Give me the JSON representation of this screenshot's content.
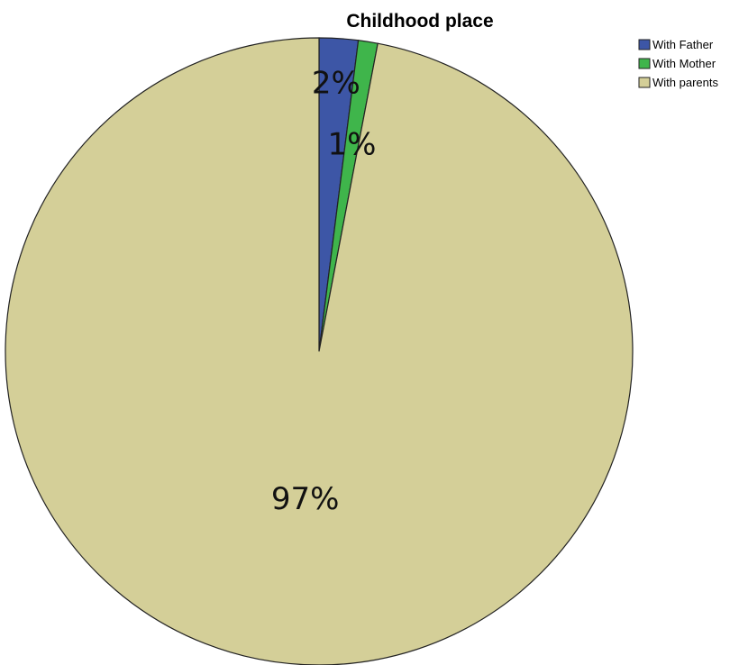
{
  "chart_data": {
    "type": "pie",
    "title": "Childhood place",
    "categories": [
      "With Father",
      "With Mother",
      "With parents"
    ],
    "values": [
      2,
      1,
      97
    ],
    "data_labels": [
      "2%",
      "1%",
      "97%"
    ],
    "colors": [
      "#3d56a6",
      "#3fb54b",
      "#d4cf98"
    ],
    "edge_color": "#222222",
    "legend": {
      "placement": "top-right",
      "entries": [
        "With Father",
        "With Mother",
        "With parents"
      ]
    }
  }
}
